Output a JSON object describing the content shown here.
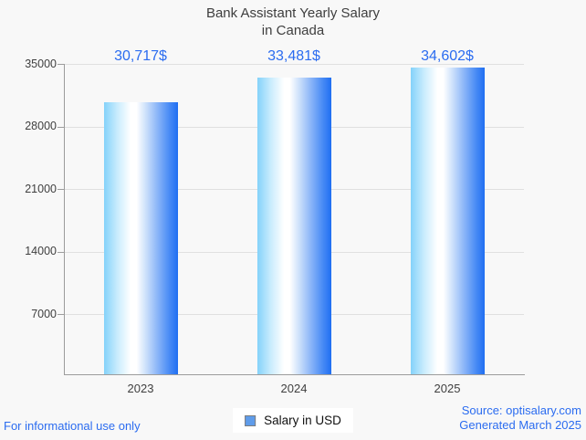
{
  "title": {
    "line1": "Bank Assistant Yearly Salary",
    "line2": "in Canada"
  },
  "legend": {
    "label": "Salary in USD",
    "marker_fill": "#5f9cea",
    "marker_border": "#7d7d7d"
  },
  "footer": {
    "disclaimer": "For informational use only",
    "source_line1": "Source: optisalary.com",
    "source_line2": "Generated March 2025"
  },
  "colors": {
    "accent_text": "#2b6cf0",
    "title_text": "#3e3e3e",
    "axis_text": "#3f3f3f",
    "gridline": "#e0e0e0",
    "axis_line": "#9c9c9c",
    "background": "#f8f8f8",
    "bar_gradient": [
      "#84d2fa",
      "#c9ecfd",
      "#ffffff",
      "#ffffff",
      "#cfe2fb",
      "#8cb6f8",
      "#4a8cf5",
      "#1f6ef2"
    ]
  },
  "chart_data": {
    "type": "bar",
    "title": "Bank Assistant Yearly Salary in Canada",
    "categories": [
      "2023",
      "2024",
      "2025"
    ],
    "series": [
      {
        "name": "Salary in USD",
        "values": [
          30717,
          33481,
          34602
        ]
      }
    ],
    "value_labels": [
      "30,717$",
      "33,481$",
      "34,602$"
    ],
    "xlabel": "",
    "ylabel": "",
    "yticks": [
      7000,
      14000,
      21000,
      28000,
      35000
    ],
    "ylim": [
      0,
      35000
    ],
    "grid": true,
    "legend_position": "bottom"
  }
}
